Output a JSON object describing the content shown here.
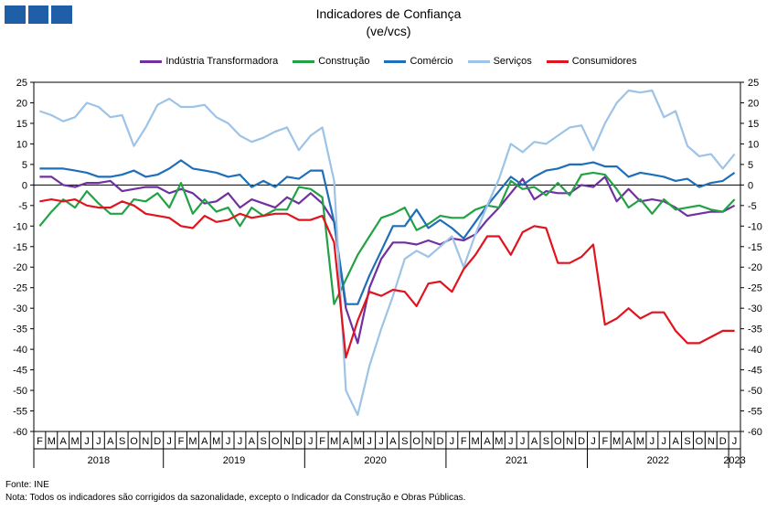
{
  "colors": {
    "logo": "#1f5fa8"
  },
  "chart_data": {
    "type": "line",
    "title": "Indicadores de Confiança",
    "subtitle": "(ve/vcs)",
    "ylim": [
      -60,
      25
    ],
    "yticks": [
      25,
      20,
      15,
      10,
      5,
      0,
      -5,
      -10,
      -15,
      -20,
      -25,
      -30,
      -35,
      -40,
      -45,
      -50,
      -55,
      -60
    ],
    "grid": false,
    "legend_position": "top",
    "months": [
      "F",
      "M",
      "A",
      "M",
      "J",
      "J",
      "A",
      "S",
      "O",
      "N",
      "D",
      "J",
      "F",
      "M",
      "A",
      "M",
      "J",
      "J",
      "A",
      "S",
      "O",
      "N",
      "D",
      "J",
      "F",
      "M",
      "A",
      "M",
      "J",
      "J",
      "A",
      "S",
      "O",
      "N",
      "D",
      "J",
      "F",
      "M",
      "A",
      "M",
      "J",
      "J",
      "A",
      "S",
      "O",
      "N",
      "D",
      "J",
      "F",
      "M",
      "A",
      "M",
      "J",
      "J",
      "A",
      "S",
      "O",
      "N",
      "D",
      "J"
    ],
    "years": [
      {
        "label": "2018",
        "start": 0,
        "end": 10
      },
      {
        "label": "2019",
        "start": 11,
        "end": 22
      },
      {
        "label": "2020",
        "start": 23,
        "end": 34
      },
      {
        "label": "2021",
        "start": 35,
        "end": 46
      },
      {
        "label": "2022",
        "start": 47,
        "end": 58
      },
      {
        "label": "2023",
        "start": 59,
        "end": 59
      }
    ],
    "series": [
      {
        "name": "Indústria Transformadora",
        "color": "#7030a0",
        "values": [
          2,
          2,
          0,
          -0.5,
          0.5,
          0.5,
          1,
          -1.5,
          -1,
          -0.5,
          -0.5,
          -2,
          -1,
          -2,
          -4.5,
          -4,
          -2,
          -5.5,
          -3.5,
          -4.5,
          -5.5,
          -3,
          -4.5,
          -2,
          -4.5,
          -9,
          -30,
          -38.5,
          -25,
          -18,
          -14,
          -14,
          -14.5,
          -13.5,
          -14.5,
          -13,
          -13.5,
          -12,
          -8.5,
          -5.5,
          -2,
          1.5,
          -3.5,
          -1.5,
          -2,
          -2,
          0,
          -0.5,
          2,
          -4,
          -1,
          -4,
          -3.5,
          -4,
          -5.5,
          -7.5,
          -7,
          -6.5,
          -6.5,
          -5
        ]
      },
      {
        "name": "Construção",
        "color": "#22a245",
        "values": [
          -10,
          -6.5,
          -3.5,
          -5.5,
          -1.5,
          -4.5,
          -7,
          -7,
          -3.5,
          -4,
          -2,
          -5.5,
          0.5,
          -7,
          -3.5,
          -6.5,
          -5.5,
          -10,
          -5.5,
          -7.5,
          -6,
          -6,
          -0.5,
          -1,
          -3,
          -29,
          -23,
          -17,
          -12.5,
          -8,
          -7,
          -5.5,
          -11,
          -9.5,
          -7.5,
          -8,
          -8,
          -6,
          -5,
          -5.5,
          1,
          -1,
          -0.5,
          -2.5,
          0.5,
          -2.5,
          2.5,
          3,
          2.5,
          -1,
          -5.5,
          -3.5,
          -7,
          -3.5,
          -6,
          -5.5,
          -5,
          -6,
          -6.5,
          -3.5
        ]
      },
      {
        "name": "Comércio",
        "color": "#1f6fb8",
        "values": [
          4,
          4,
          4,
          3.5,
          3,
          2,
          2,
          2.5,
          3.5,
          2,
          2.5,
          4,
          6,
          4,
          3.5,
          3,
          2,
          2.5,
          -0.5,
          1,
          -0.5,
          2,
          1.5,
          3.5,
          3.5,
          -9,
          -29,
          -29,
          -22,
          -16,
          -10,
          -10,
          -6,
          -10.5,
          -8.5,
          -10.5,
          -13,
          -9,
          -5,
          -1.5,
          2,
          0,
          2,
          3.5,
          4,
          5,
          5,
          5.5,
          4.5,
          4.5,
          2,
          3,
          2.5,
          2,
          1,
          1.5,
          -0.5,
          0.5,
          1,
          3
        ]
      },
      {
        "name": "Serviços",
        "color": "#9dc3e6",
        "values": [
          18,
          17,
          15.5,
          16.5,
          20,
          19,
          16.5,
          17,
          9.5,
          14,
          19.5,
          21,
          19,
          19,
          19.5,
          16.5,
          15,
          12,
          10.5,
          11.5,
          13,
          14,
          8.5,
          12,
          14,
          1,
          -50,
          -56,
          -44,
          -35,
          -27,
          -18,
          -16,
          -17.5,
          -15,
          -12.5,
          -20,
          -12,
          -5,
          1.5,
          10,
          8,
          10.5,
          10,
          12,
          14,
          14.5,
          8.5,
          15,
          20,
          23,
          22.5,
          23,
          16.5,
          18,
          9.5,
          7,
          7.5,
          4,
          7.5
        ]
      },
      {
        "name": "Consumidores",
        "color": "#e0141e",
        "values": [
          -4,
          -3.5,
          -4,
          -3.5,
          -5,
          -5.5,
          -5.5,
          -4,
          -5,
          -7,
          -7.5,
          -8,
          -10,
          -10.5,
          -7.5,
          -9,
          -8.5,
          -7,
          -8,
          -7.5,
          -7,
          -7,
          -8.5,
          -8.5,
          -7.5,
          -14,
          -42,
          -33,
          -26,
          -27,
          -25.5,
          -26,
          -29.5,
          -24,
          -23.5,
          -26,
          -20.5,
          -17,
          -12.5,
          -12.5,
          -17,
          -11.5,
          -10,
          -10.5,
          -19,
          -19,
          -17.5,
          -14.5,
          -34,
          -32.5,
          -30,
          -32.5,
          -31,
          -31,
          -35.5,
          -38.5,
          -38.5,
          -37,
          -35.5,
          -35.5
        ]
      }
    ]
  },
  "footer": {
    "source": "Fonte: INE",
    "note": "Nota: Todos os indicadores são corrigidos da sazonalidade,  excepto o Indicador da Construção e Obras Públicas."
  }
}
